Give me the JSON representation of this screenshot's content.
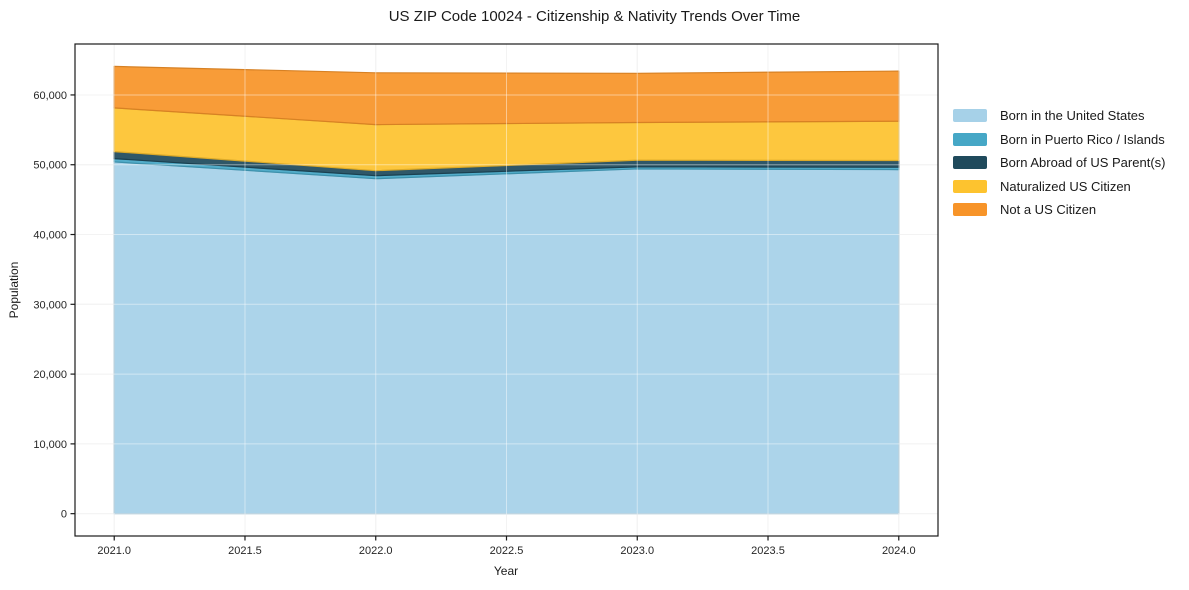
{
  "chart_data": {
    "type": "area",
    "stacked": true,
    "title": "US ZIP Code 10024 - Citizenship & Nativity Trends Over Time",
    "xlabel": "Year",
    "ylabel": "Population",
    "x": [
      2021,
      2022,
      2023,
      2024
    ],
    "series": [
      {
        "name": "Born in the United States",
        "color": "#a6d1e8",
        "values": [
          50400,
          48000,
          49400,
          49300
        ]
      },
      {
        "name": "Born in Puerto Rico / Islands",
        "color": "#46a7c6",
        "values": [
          480,
          430,
          300,
          340
        ]
      },
      {
        "name": "Born Abroad of US Parent(s)",
        "color": "#1f4a5c",
        "values": [
          1000,
          720,
          950,
          960
        ]
      },
      {
        "name": "Naturalized US Citizen",
        "color": "#fdc32f",
        "values": [
          6270,
          6600,
          5400,
          5640
        ]
      },
      {
        "name": "Not a US Citizen",
        "color": "#f79429",
        "values": [
          5940,
          7430,
          7050,
          7170
        ]
      }
    ],
    "totals": [
      64090,
      63180,
      63100,
      63410
    ],
    "xlim": [
      2020.85,
      2024.15
    ],
    "ylim": [
      -3200,
      67300
    ],
    "xticks": [
      2021.0,
      2021.5,
      2022.0,
      2022.5,
      2023.0,
      2023.5,
      2024.0
    ],
    "xtick_labels": [
      "2021.0",
      "2021.5",
      "2022.0",
      "2022.5",
      "2023.0",
      "2023.5",
      "2024.0"
    ],
    "yticks": [
      0,
      10000,
      20000,
      30000,
      40000,
      50000,
      60000
    ],
    "ytick_labels": [
      "0",
      "10,000",
      "20,000",
      "30,000",
      "40,000",
      "50,000",
      "60,000"
    ],
    "grid": true,
    "legend_position": "outside-right",
    "colors": {
      "spine": "#1a1a1a",
      "tick_text": "#262626",
      "grid_under": "#e9e9e9",
      "grid_over": "rgba(255,255,255,0.45)",
      "background": "#ffffff"
    }
  }
}
